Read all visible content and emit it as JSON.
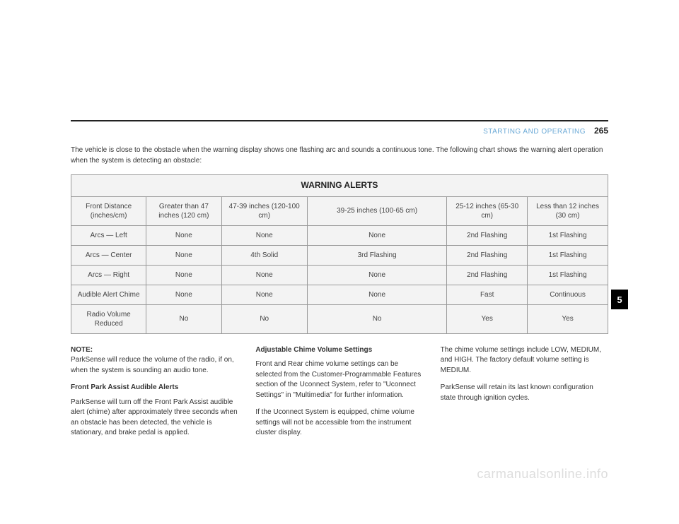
{
  "header": {
    "section": "STARTING AND OPERATING",
    "page": "265"
  },
  "intro": "The vehicle is close to the obstacle when the warning display shows one flashing arc and sounds a continuous tone. The following chart shows the warning alert operation when the system is detecting an obstacle:",
  "table": {
    "title": "WARNING ALERTS",
    "header_row": [
      "Front Distance (inches/cm)",
      "Greater than 47 inches (120 cm)",
      "47-39 inches (120-100 cm)",
      "39-25 inches (100-65 cm)",
      "25-12 inches (65-30 cm)",
      "Less than 12 inches (30 cm)"
    ],
    "rows": [
      [
        "Arcs — Left",
        "None",
        "None",
        "None",
        "2nd Flashing",
        "1st Flashing"
      ],
      [
        "Arcs — Center",
        "None",
        "4th Solid",
        "3rd Flashing",
        "2nd Flashing",
        "1st Flashing"
      ],
      [
        "Arcs — Right",
        "None",
        "None",
        "None",
        "2nd Flashing",
        "1st Flashing"
      ],
      [
        "Audible Alert Chime",
        "None",
        "None",
        "None",
        "Fast",
        "Continuous"
      ],
      [
        "Radio Volume Reduced",
        "No",
        "No",
        "No",
        "Yes",
        "Yes"
      ]
    ]
  },
  "side_tab": "5",
  "col1": {
    "note_label": "NOTE:",
    "note_text": "ParkSense will reduce the volume of the radio, if on, when the system is sounding an audio tone.",
    "h1": "Front Park Assist Audible Alerts",
    "p1": "ParkSense will turn off the Front Park Assist audible alert (chime) after approximately three seconds when an obstacle has been detected, the vehicle is stationary, and brake pedal is applied."
  },
  "col2": {
    "h1": "Adjustable Chime Volume Settings",
    "p1": "Front and Rear chime volume settings can be selected from the Customer-Programmable Features section of the Uconnect System, refer to \"Uconnect Settings\" in \"Multimedia\" for further information.",
    "p2": "If the Uconnect System is equipped, chime volume settings will not be accessible from the instrument cluster display."
  },
  "col3": {
    "p1": "The chime volume settings include LOW, MEDIUM, and HIGH. The factory default volume setting is MEDIUM.",
    "p2": "ParkSense will retain its last known configuration state through ignition cycles."
  },
  "watermark": "carmanualsonline.info"
}
